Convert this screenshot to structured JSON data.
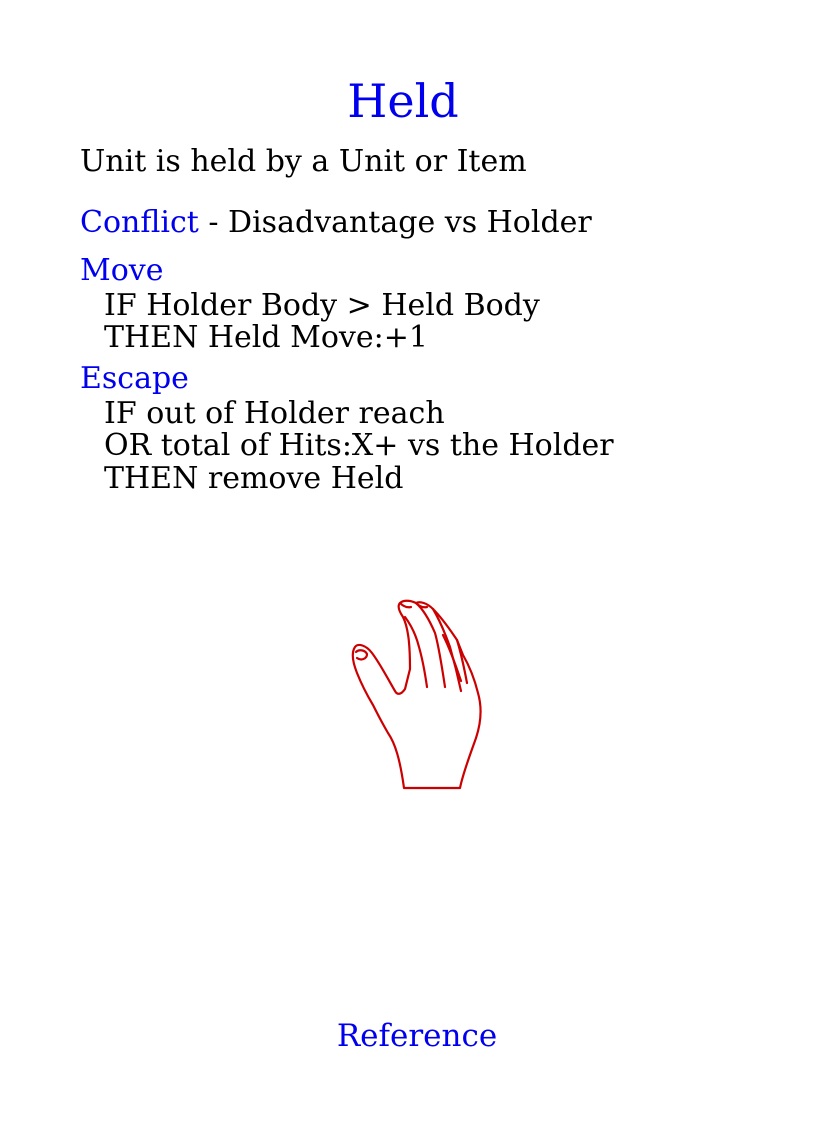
{
  "title": "Held",
  "description": "Unit is held by a Unit or Item",
  "conflict": {
    "keyword": "Conflict",
    "text": " - Disadvantage vs Holder"
  },
  "move": {
    "heading": "Move",
    "lines": [
      "IF Holder Body > Held Body",
      "THEN Held Move:+1"
    ]
  },
  "escape": {
    "heading": "Escape",
    "lines": [
      "IF out of Holder reach",
      "OR total of Hits:X+ vs the Holder",
      "THEN remove Held"
    ]
  },
  "illustration": {
    "icon": "hand-icon",
    "color": "#cc0000"
  },
  "footer": {
    "link": "Reference"
  },
  "colors": {
    "accent": "#0000ee",
    "text": "#000000"
  }
}
